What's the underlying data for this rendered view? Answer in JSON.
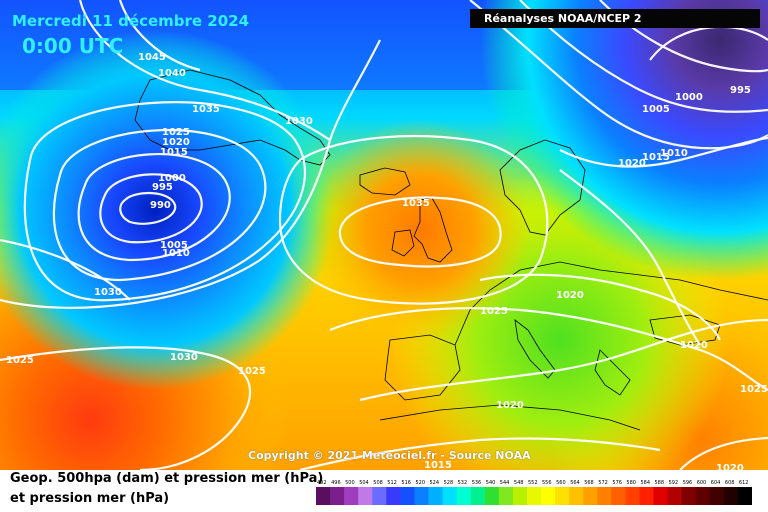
{
  "header": {
    "date": "Mercredi 11 décembre 2024",
    "time": "0:00 UTC",
    "source": "Réanalyses NOAA/NCEP 2"
  },
  "footer": {
    "copyright": "Copyright © 2021 Meteociel.fr - Source NOAA",
    "legend_line1": "Geop. 500hpa (dam) et pression mer (hPa)",
    "legend_line2": "et pression mer (hPa)"
  },
  "colorbar": {
    "values": [
      "492",
      "496",
      "500",
      "504",
      "508",
      "512",
      "516",
      "520",
      "524",
      "528",
      "532",
      "536",
      "540",
      "544",
      "548",
      "552",
      "556",
      "560",
      "564",
      "568",
      "572",
      "576",
      "580",
      "584",
      "588",
      "592",
      "596",
      "600",
      "604",
      "608",
      "612"
    ],
    "colors": [
      "#5a0f5e",
      "#7b1f8a",
      "#a03dbf",
      "#c07ae8",
      "#6b6bff",
      "#3a3aff",
      "#1550ff",
      "#0a80ff",
      "#00b0ff",
      "#00e0ff",
      "#00ffd0",
      "#00f090",
      "#30e030",
      "#80e820",
      "#b8f000",
      "#e8f800",
      "#ffff00",
      "#ffe000",
      "#ffc000",
      "#ffa000",
      "#ff8000",
      "#ff6000",
      "#ff4000",
      "#ff2000",
      "#e00000",
      "#b00000",
      "#800000",
      "#600000",
      "#400000",
      "#200000",
      "#000000"
    ]
  },
  "isobar_labels": [
    "1045",
    "1040",
    "1035",
    "1030",
    "1025",
    "1020",
    "1015",
    "1000",
    "995",
    "990",
    "1005",
    "1010",
    "1030",
    "1025",
    "1030",
    "1025",
    "1035",
    "1025",
    "1020",
    "1020",
    "1015",
    "1005",
    "1000",
    "995",
    "1020",
    "1010",
    "1025",
    "1020",
    "1015",
    "1020"
  ]
}
